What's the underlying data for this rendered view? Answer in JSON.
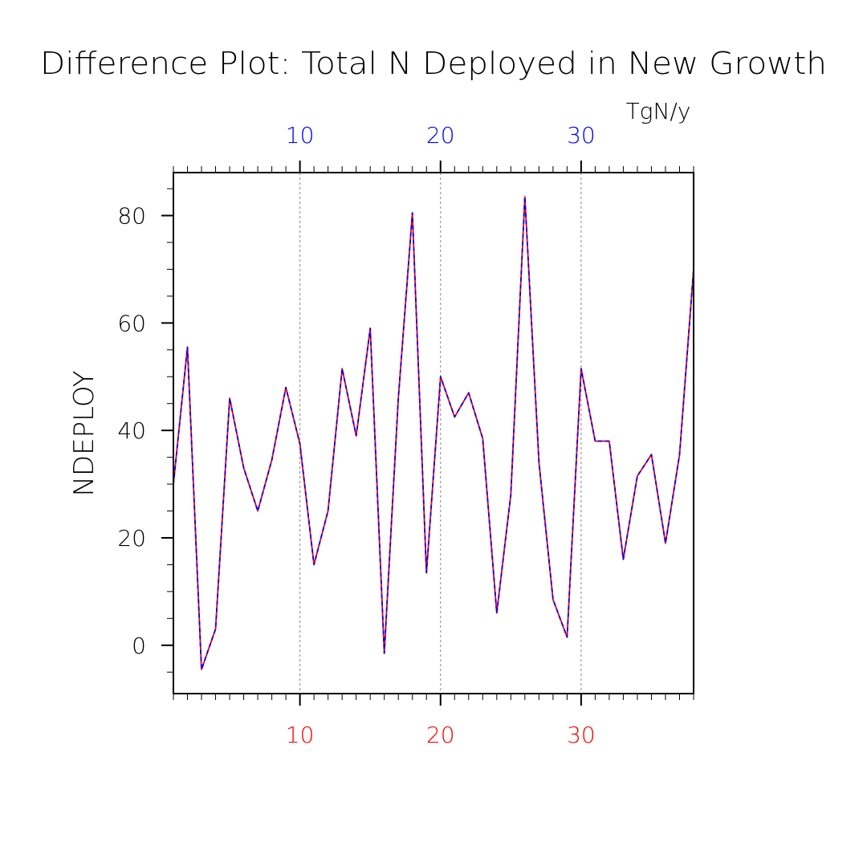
{
  "chart_data": {
    "type": "line",
    "title": "Difference Plot: Total N Deployed in New Growth",
    "ylabel": "NDEPLOY",
    "units": "TgN/y",
    "xlim": [
      1,
      38
    ],
    "ylim": [
      -9,
      88
    ],
    "grid": "x-dashed",
    "x_ticks_major": [
      10,
      20,
      30
    ],
    "y_ticks_major": [
      0,
      20,
      40,
      60,
      80
    ],
    "x_tick_labels_top": [
      "10",
      "20",
      "30"
    ],
    "x_tick_labels_bottom": [
      "10",
      "20",
      "30"
    ],
    "y_tick_labels": [
      "0",
      "20",
      "40",
      "60",
      "80"
    ],
    "x": [
      1,
      2,
      3,
      4,
      5,
      6,
      7,
      8,
      9,
      10,
      11,
      12,
      13,
      14,
      15,
      16,
      17,
      18,
      19,
      20,
      21,
      22,
      23,
      24,
      25,
      26,
      27,
      28,
      29,
      30,
      31,
      32,
      33,
      34,
      35,
      36,
      37,
      38
    ],
    "series": [
      {
        "color": "#ff0000",
        "style": "solid",
        "values": [
          30.0,
          55.5,
          -4.5,
          3.0,
          46.0,
          33.0,
          25.0,
          34.5,
          48.0,
          37.5,
          15.0,
          25.0,
          51.5,
          39.0,
          59.0,
          -1.5,
          46.0,
          80.5,
          13.5,
          50.0,
          42.5,
          47.0,
          38.5,
          6.0,
          28.0,
          83.5,
          34.0,
          8.5,
          1.5,
          51.5,
          38.0,
          38.0,
          16.0,
          31.5,
          35.5,
          19.0,
          35.5,
          70.0
        ]
      },
      {
        "color": "#0000ff",
        "style": "dashed",
        "values": [
          30.0,
          55.5,
          -4.5,
          3.0,
          46.0,
          33.0,
          25.0,
          34.5,
          48.0,
          37.5,
          15.0,
          25.0,
          51.5,
          39.0,
          59.0,
          -1.5,
          46.0,
          80.5,
          13.5,
          50.0,
          42.5,
          47.0,
          38.5,
          6.0,
          28.0,
          83.5,
          34.0,
          8.5,
          1.5,
          51.5,
          38.0,
          38.0,
          16.0,
          31.5,
          35.5,
          19.0,
          35.5,
          70.0
        ]
      }
    ],
    "colors": {
      "axis": "#000000",
      "top_tick_labels": "#0000ff",
      "bottom_tick_labels": "#ff0000",
      "grid": "#888888"
    }
  }
}
